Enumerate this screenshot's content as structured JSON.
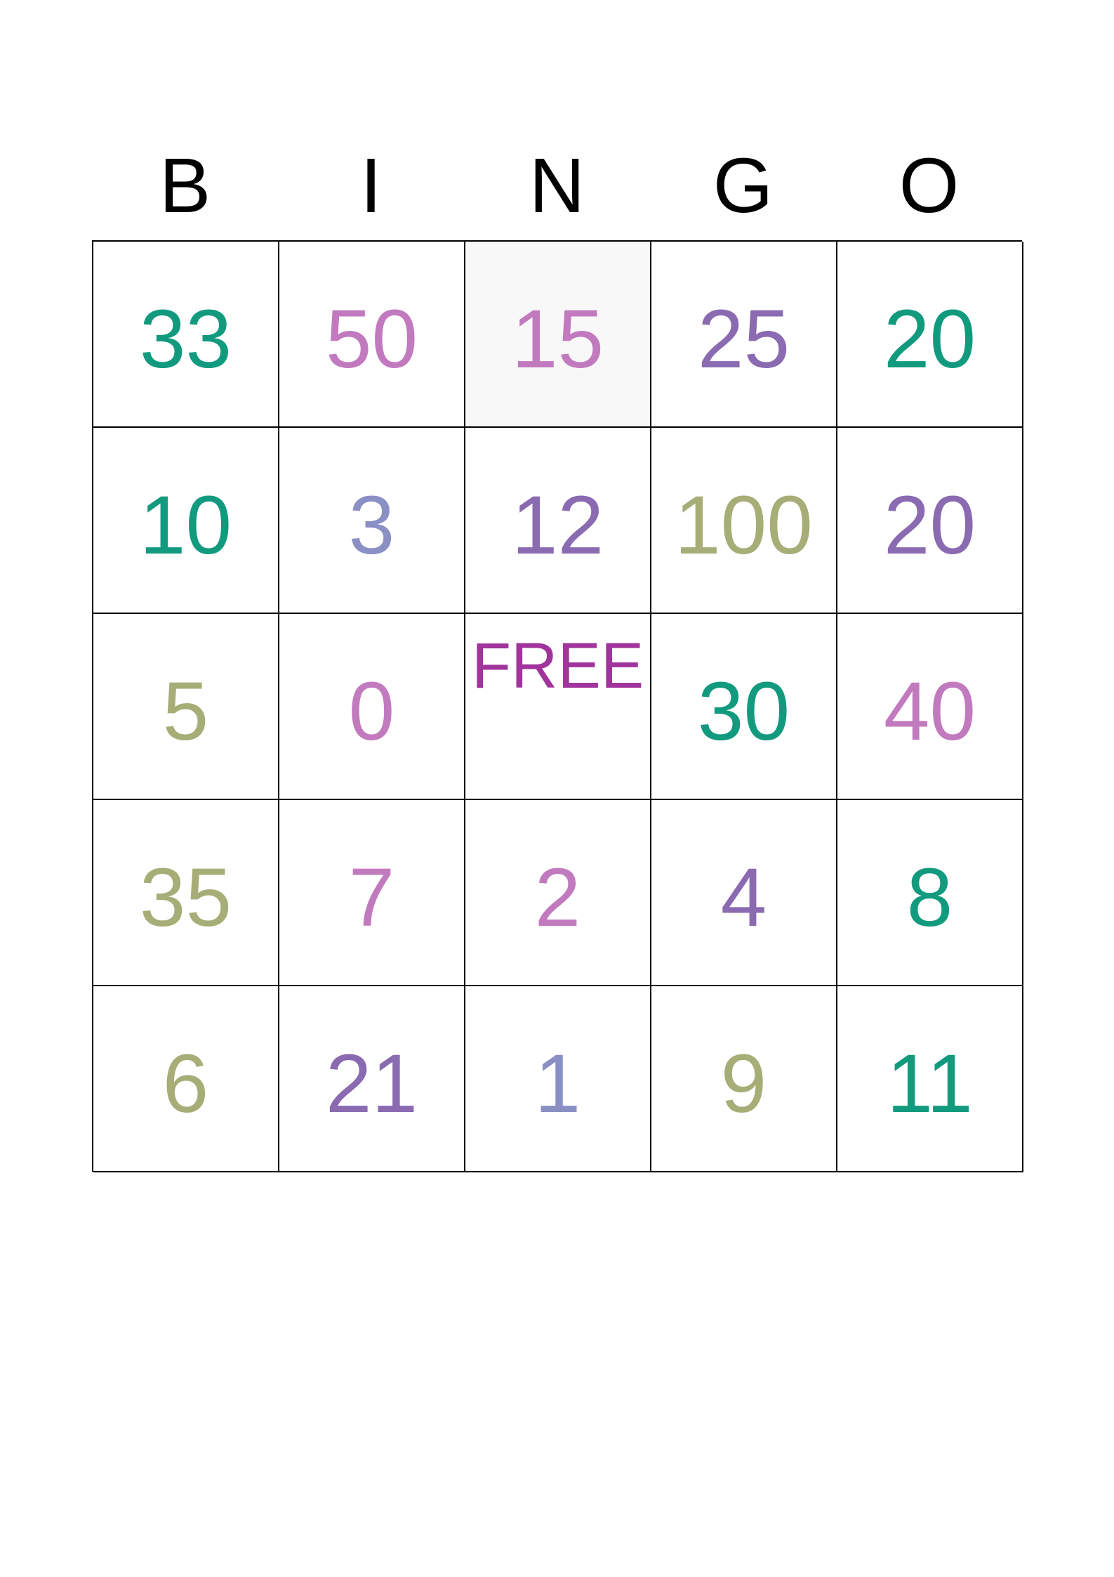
{
  "header": [
    "B",
    "I",
    "N",
    "G",
    "O"
  ],
  "free_label": "FREE",
  "free_color": "#a0339c",
  "rows": [
    [
      {
        "v": "33",
        "c": "#129a7e"
      },
      {
        "v": "50",
        "c": "#c27abf"
      },
      {
        "v": "15",
        "c": "#c27abf",
        "shaded": true
      },
      {
        "v": "25",
        "c": "#8a6ab0"
      },
      {
        "v": "20",
        "c": "#129a7e"
      }
    ],
    [
      {
        "v": "10",
        "c": "#129a7e"
      },
      {
        "v": "3",
        "c": "#8a8fc4"
      },
      {
        "v": "12",
        "c": "#8a6ab0"
      },
      {
        "v": "100",
        "c": "#a6ad76"
      },
      {
        "v": "20",
        "c": "#8a6ab0"
      }
    ],
    [
      {
        "v": "5",
        "c": "#a6ad76"
      },
      {
        "v": "0",
        "c": "#c27abf"
      },
      {
        "v": "",
        "c": "#a0339c",
        "free": true
      },
      {
        "v": "30",
        "c": "#129a7e"
      },
      {
        "v": "40",
        "c": "#c27abf"
      }
    ],
    [
      {
        "v": "35",
        "c": "#a6ad76"
      },
      {
        "v": "7",
        "c": "#c27abf"
      },
      {
        "v": "2",
        "c": "#c27abf"
      },
      {
        "v": "4",
        "c": "#8a6ab0"
      },
      {
        "v": "8",
        "c": "#129a7e"
      }
    ],
    [
      {
        "v": "6",
        "c": "#a6ad76"
      },
      {
        "v": "21",
        "c": "#8a6ab0"
      },
      {
        "v": "1",
        "c": "#8a8fc4"
      },
      {
        "v": "9",
        "c": "#a6ad76"
      },
      {
        "v": "11",
        "c": "#129a7e"
      }
    ]
  ]
}
